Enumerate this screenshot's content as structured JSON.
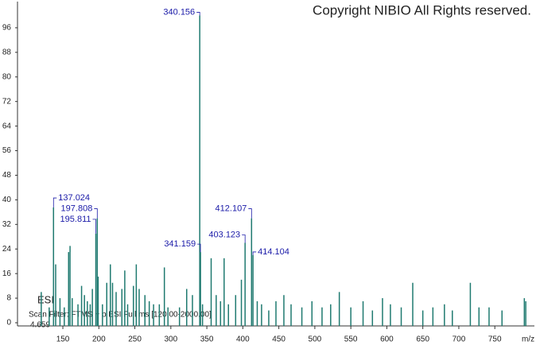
{
  "chart_data": {
    "type": "spectrum",
    "title": "Copyright NIBIO All Rights reserved.",
    "ionization": "ESI",
    "scan_filter": "Scan Filter: FTMS + p ESI Full ms [120.00-2000.00]",
    "min_label": "4.659",
    "x_label": "m/z",
    "color": "#1f7a70",
    "label_color": "#1a1aa8",
    "xlim": [
      87,
      805
    ],
    "ylim": [
      0,
      104
    ],
    "xticks": [
      150,
      200,
      250,
      300,
      350,
      400,
      450,
      500,
      550,
      600,
      650,
      700,
      750
    ],
    "yticks": [
      0,
      8,
      16,
      24,
      32,
      40,
      48,
      56,
      64,
      72,
      80,
      88,
      96
    ],
    "labeled_peaks": {
      "x": [
        137.024,
        195.811,
        197.808,
        340.156,
        341.159,
        403.123,
        412.107,
        414.104
      ],
      "values": [
        37.5,
        29,
        34,
        100,
        23,
        26,
        34,
        22
      ]
    },
    "peaks": {
      "x": [
        120,
        131,
        140,
        146,
        152,
        158,
        160,
        163,
        171,
        176,
        180,
        184,
        188,
        191,
        199,
        205,
        211,
        216,
        219,
        224,
        232,
        236,
        240,
        248,
        252,
        256,
        264,
        270,
        276,
        284,
        291,
        296,
        312,
        322,
        330,
        344,
        356,
        363,
        369,
        374,
        380,
        390,
        398,
        420,
        426,
        436,
        446,
        457,
        467,
        482,
        496,
        510,
        522,
        534,
        550,
        567,
        580,
        594,
        605,
        620,
        636,
        650,
        664,
        680,
        691,
        716,
        728,
        742,
        760,
        791,
        793
      ],
      "values": [
        10,
        5,
        19,
        8,
        5,
        23,
        25,
        8,
        6,
        12,
        9,
        7,
        6,
        11,
        15,
        6,
        13,
        19,
        13,
        10,
        11,
        17,
        6,
        12,
        19,
        11,
        9,
        7,
        6,
        6,
        18,
        5,
        5,
        11,
        9,
        6,
        21,
        9,
        7,
        21,
        6,
        9,
        14,
        7,
        6,
        4,
        7,
        9,
        6,
        5,
        7,
        5,
        6,
        10,
        5,
        7,
        4,
        8,
        6,
        5,
        13,
        4,
        5,
        6,
        4,
        13,
        5,
        5,
        4,
        8,
        7
      ]
    }
  }
}
